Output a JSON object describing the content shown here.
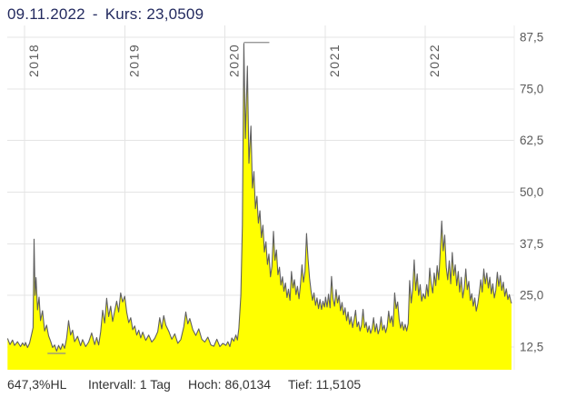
{
  "header": {
    "date": "09.11.2022",
    "dash": "-",
    "kurs_label": "Kurs:",
    "kurs_value": "23,0509"
  },
  "footer": {
    "change_hl": "647,3%HL",
    "interval": "Intervall: 1 Tag",
    "high": "Hoch: 86,0134",
    "low": "Tief: 11,5105"
  },
  "colors": {
    "background": "#ffffff",
    "area_fill": "#ffff00",
    "line": "#5f5f5f",
    "grid": "#e4e4e4",
    "axis_edge": "#ececec",
    "marker": "#8c8c8c",
    "title_text": "#232a5f",
    "axis_text": "#5a5a5a",
    "footer_text": "#333333"
  },
  "chart_data": {
    "type": "area",
    "title": "09.11.2022 - Kurs: 23,0509",
    "xlabel": "",
    "ylabel": "",
    "grid": true,
    "legend": false,
    "x_range": [
      2017.83,
      2022.87
    ],
    "ylim": [
      7,
      90.5
    ],
    "x_years": [
      2018,
      2019,
      2020,
      2021,
      2022
    ],
    "y_ticks": [
      {
        "v": 87.5,
        "label": "87,5"
      },
      {
        "v": 75.0,
        "label": "75,0"
      },
      {
        "v": 62.5,
        "label": "62,5"
      },
      {
        "v": 50.0,
        "label": "50,0"
      },
      {
        "v": 37.5,
        "label": "37,5"
      },
      {
        "v": 25.0,
        "label": "25,0"
      },
      {
        "v": 12.5,
        "label": "12,5"
      }
    ],
    "last_value": 23.0509,
    "high_marker": {
      "x": 2020.19,
      "value": 86.0134
    },
    "low_marker": {
      "x": 2018.32,
      "value": 11.5105
    },
    "series": [
      {
        "name": "Kurs",
        "points": [
          [
            2017.83,
            14.6
          ],
          [
            2017.855,
            13.1
          ],
          [
            2017.88,
            14.2
          ],
          [
            2017.9,
            12.9
          ],
          [
            2017.93,
            13.8
          ],
          [
            2017.96,
            12.6
          ],
          [
            2017.98,
            13.5
          ],
          [
            2018.0,
            12.8
          ],
          [
            2018.01,
            13.6
          ],
          [
            2018.03,
            12.4
          ],
          [
            2018.05,
            13.4
          ],
          [
            2018.07,
            15.5
          ],
          [
            2018.085,
            17.2
          ],
          [
            2018.095,
            38.6
          ],
          [
            2018.105,
            25.0
          ],
          [
            2018.115,
            29.3
          ],
          [
            2018.13,
            21.5
          ],
          [
            2018.145,
            24.6
          ],
          [
            2018.16,
            18.9
          ],
          [
            2018.18,
            21.3
          ],
          [
            2018.2,
            16.4
          ],
          [
            2018.22,
            17.8
          ],
          [
            2018.24,
            15.2
          ],
          [
            2018.26,
            13.9
          ],
          [
            2018.28,
            12.4
          ],
          [
            2018.3,
            13.0
          ],
          [
            2018.32,
            11.51
          ],
          [
            2018.34,
            12.9
          ],
          [
            2018.36,
            11.9
          ],
          [
            2018.38,
            13.3
          ],
          [
            2018.4,
            12.2
          ],
          [
            2018.42,
            14.6
          ],
          [
            2018.44,
            18.9
          ],
          [
            2018.46,
            15.4
          ],
          [
            2018.48,
            16.6
          ],
          [
            2018.5,
            13.8
          ],
          [
            2018.53,
            15.1
          ],
          [
            2018.56,
            12.8
          ],
          [
            2018.58,
            14.3
          ],
          [
            2018.61,
            12.6
          ],
          [
            2018.64,
            13.7
          ],
          [
            2018.67,
            15.9
          ],
          [
            2018.7,
            13.1
          ],
          [
            2018.72,
            14.8
          ],
          [
            2018.74,
            13.0
          ],
          [
            2018.76,
            16.2
          ],
          [
            2018.78,
            21.4
          ],
          [
            2018.8,
            18.3
          ],
          [
            2018.82,
            24.3
          ],
          [
            2018.84,
            19.9
          ],
          [
            2018.86,
            22.4
          ],
          [
            2018.88,
            18.7
          ],
          [
            2018.9,
            21.2
          ],
          [
            2018.92,
            23.6
          ],
          [
            2018.94,
            21.0
          ],
          [
            2018.96,
            25.6
          ],
          [
            2018.98,
            23.4
          ],
          [
            2019.0,
            24.8
          ],
          [
            2019.02,
            20.9
          ],
          [
            2019.04,
            18.4
          ],
          [
            2019.06,
            19.6
          ],
          [
            2019.08,
            16.7
          ],
          [
            2019.1,
            17.6
          ],
          [
            2019.12,
            15.4
          ],
          [
            2019.14,
            16.6
          ],
          [
            2019.16,
            14.7
          ],
          [
            2019.18,
            16.1
          ],
          [
            2019.21,
            14.1
          ],
          [
            2019.24,
            15.4
          ],
          [
            2019.27,
            13.7
          ],
          [
            2019.3,
            14.6
          ],
          [
            2019.33,
            16.2
          ],
          [
            2019.35,
            19.6
          ],
          [
            2019.37,
            16.9
          ],
          [
            2019.39,
            20.1
          ],
          [
            2019.41,
            17.8
          ],
          [
            2019.44,
            16.3
          ],
          [
            2019.47,
            14.4
          ],
          [
            2019.5,
            15.7
          ],
          [
            2019.53,
            13.4
          ],
          [
            2019.56,
            14.3
          ],
          [
            2019.59,
            17.4
          ],
          [
            2019.61,
            21.0
          ],
          [
            2019.63,
            18.1
          ],
          [
            2019.65,
            19.4
          ],
          [
            2019.68,
            16.7
          ],
          [
            2019.71,
            15.3
          ],
          [
            2019.74,
            16.9
          ],
          [
            2019.77,
            14.4
          ],
          [
            2019.8,
            13.7
          ],
          [
            2019.83,
            14.9
          ],
          [
            2019.86,
            13.0
          ],
          [
            2019.89,
            12.7
          ],
          [
            2019.92,
            14.4
          ],
          [
            2019.95,
            12.6
          ],
          [
            2019.98,
            13.4
          ],
          [
            2020.01,
            12.9
          ],
          [
            2020.03,
            13.8
          ],
          [
            2020.05,
            12.6
          ],
          [
            2020.07,
            14.7
          ],
          [
            2020.09,
            13.9
          ],
          [
            2020.11,
            15.4
          ],
          [
            2020.125,
            14.2
          ],
          [
            2020.14,
            17.0
          ],
          [
            2020.16,
            25.0
          ],
          [
            2020.175,
            42.0
          ],
          [
            2020.19,
            86.0
          ],
          [
            2020.205,
            63.0
          ],
          [
            2020.225,
            80.5
          ],
          [
            2020.24,
            57.0
          ],
          [
            2020.26,
            66.0
          ],
          [
            2020.275,
            51.0
          ],
          [
            2020.29,
            55.0
          ],
          [
            2020.305,
            46.0
          ],
          [
            2020.32,
            49.0
          ],
          [
            2020.335,
            42.5
          ],
          [
            2020.35,
            45.5
          ],
          [
            2020.365,
            39.0
          ],
          [
            2020.38,
            42.0
          ],
          [
            2020.395,
            35.5
          ],
          [
            2020.41,
            38.0
          ],
          [
            2020.425,
            32.5
          ],
          [
            2020.44,
            35.0
          ],
          [
            2020.455,
            29.5
          ],
          [
            2020.47,
            32.0
          ],
          [
            2020.485,
            40.5
          ],
          [
            2020.5,
            33.5
          ],
          [
            2020.515,
            36.0
          ],
          [
            2020.53,
            30.0
          ],
          [
            2020.545,
            31.8
          ],
          [
            2020.56,
            27.5
          ],
          [
            2020.575,
            29.5
          ],
          [
            2020.59,
            26.0
          ],
          [
            2020.605,
            28.0
          ],
          [
            2020.62,
            24.5
          ],
          [
            2020.635,
            26.5
          ],
          [
            2020.65,
            23.8
          ],
          [
            2020.665,
            30.8
          ],
          [
            2020.68,
            26.8
          ],
          [
            2020.695,
            28.8
          ],
          [
            2020.71,
            25.2
          ],
          [
            2020.725,
            27.2
          ],
          [
            2020.74,
            24.2
          ],
          [
            2020.755,
            27.6
          ],
          [
            2020.77,
            32.4
          ],
          [
            2020.785,
            28.2
          ],
          [
            2020.8,
            30.8
          ],
          [
            2020.815,
            40.0
          ],
          [
            2020.83,
            34.0
          ],
          [
            2020.845,
            29.2
          ],
          [
            2020.86,
            26.2
          ],
          [
            2020.875,
            23.8
          ],
          [
            2020.89,
            25.6
          ],
          [
            2020.905,
            22.6
          ],
          [
            2020.92,
            24.4
          ],
          [
            2020.935,
            21.8
          ],
          [
            2020.95,
            24.0
          ],
          [
            2020.965,
            21.6
          ],
          [
            2020.98,
            23.6
          ],
          [
            2020.995,
            22.2
          ],
          [
            2021.005,
            24.6
          ],
          [
            2021.02,
            22.2
          ],
          [
            2021.035,
            25.3
          ],
          [
            2021.05,
            22.0
          ],
          [
            2021.065,
            29.6
          ],
          [
            2021.08,
            24.2
          ],
          [
            2021.095,
            22.4
          ],
          [
            2021.11,
            26.4
          ],
          [
            2021.125,
            23.2
          ],
          [
            2021.14,
            25.0
          ],
          [
            2021.155,
            21.3
          ],
          [
            2021.17,
            23.3
          ],
          [
            2021.185,
            20.3
          ],
          [
            2021.2,
            22.0
          ],
          [
            2021.215,
            18.9
          ],
          [
            2021.23,
            21.0
          ],
          [
            2021.245,
            18.0
          ],
          [
            2021.26,
            19.8
          ],
          [
            2021.275,
            17.2
          ],
          [
            2021.29,
            19.0
          ],
          [
            2021.305,
            21.4
          ],
          [
            2021.32,
            17.4
          ],
          [
            2021.335,
            18.6
          ],
          [
            2021.35,
            16.4
          ],
          [
            2021.365,
            17.9
          ],
          [
            2021.38,
            21.6
          ],
          [
            2021.395,
            17.2
          ],
          [
            2021.41,
            18.5
          ],
          [
            2021.425,
            16.1
          ],
          [
            2021.44,
            17.6
          ],
          [
            2021.455,
            15.8
          ],
          [
            2021.47,
            17.0
          ],
          [
            2021.485,
            19.6
          ],
          [
            2021.5,
            16.2
          ],
          [
            2021.515,
            18.1
          ],
          [
            2021.53,
            15.7
          ],
          [
            2021.545,
            16.9
          ],
          [
            2021.56,
            19.8
          ],
          [
            2021.575,
            16.6
          ],
          [
            2021.59,
            17.8
          ],
          [
            2021.605,
            16.0
          ],
          [
            2021.62,
            17.4
          ],
          [
            2021.635,
            21.2
          ],
          [
            2021.65,
            18.4
          ],
          [
            2021.665,
            20.0
          ],
          [
            2021.68,
            17.5
          ],
          [
            2021.695,
            25.6
          ],
          [
            2021.71,
            21.8
          ],
          [
            2021.725,
            23.4
          ],
          [
            2021.74,
            19.3
          ],
          [
            2021.755,
            17.1
          ],
          [
            2021.77,
            18.6
          ],
          [
            2021.785,
            16.6
          ],
          [
            2021.8,
            18.0
          ],
          [
            2021.815,
            16.4
          ],
          [
            2021.83,
            18.2
          ],
          [
            2021.845,
            28.6
          ],
          [
            2021.86,
            23.2
          ],
          [
            2021.875,
            26.4
          ],
          [
            2021.89,
            33.6
          ],
          [
            2021.905,
            26.2
          ],
          [
            2021.92,
            30.2
          ],
          [
            2021.935,
            25.0
          ],
          [
            2021.95,
            27.6
          ],
          [
            2021.965,
            23.6
          ],
          [
            2021.98,
            25.4
          ],
          [
            2022.0,
            24.2
          ],
          [
            2022.015,
            27.6
          ],
          [
            2022.03,
            24.8
          ],
          [
            2022.045,
            31.6
          ],
          [
            2022.06,
            27.8
          ],
          [
            2022.075,
            25.6
          ],
          [
            2022.09,
            30.4
          ],
          [
            2022.105,
            27.4
          ],
          [
            2022.12,
            32.2
          ],
          [
            2022.135,
            28.8
          ],
          [
            2022.15,
            35.2
          ],
          [
            2022.165,
            43.0
          ],
          [
            2022.18,
            35.8
          ],
          [
            2022.195,
            39.6
          ],
          [
            2022.21,
            31.8
          ],
          [
            2022.225,
            28.8
          ],
          [
            2022.24,
            33.4
          ],
          [
            2022.255,
            27.8
          ],
          [
            2022.27,
            35.4
          ],
          [
            2022.285,
            29.8
          ],
          [
            2022.3,
            32.4
          ],
          [
            2022.315,
            27.4
          ],
          [
            2022.33,
            30.8
          ],
          [
            2022.345,
            25.8
          ],
          [
            2022.36,
            29.4
          ],
          [
            2022.375,
            24.4
          ],
          [
            2022.39,
            26.8
          ],
          [
            2022.405,
            31.4
          ],
          [
            2022.42,
            26.4
          ],
          [
            2022.435,
            28.4
          ],
          [
            2022.45,
            23.8
          ],
          [
            2022.465,
            25.4
          ],
          [
            2022.48,
            22.4
          ],
          [
            2022.495,
            24.4
          ],
          [
            2022.51,
            21.2
          ],
          [
            2022.525,
            23.0
          ],
          [
            2022.54,
            25.6
          ],
          [
            2022.555,
            28.8
          ],
          [
            2022.57,
            25.8
          ],
          [
            2022.585,
            31.4
          ],
          [
            2022.6,
            27.8
          ],
          [
            2022.615,
            30.4
          ],
          [
            2022.63,
            26.8
          ],
          [
            2022.645,
            29.4
          ],
          [
            2022.66,
            25.4
          ],
          [
            2022.675,
            27.8
          ],
          [
            2022.69,
            24.4
          ],
          [
            2022.705,
            26.2
          ],
          [
            2022.72,
            30.6
          ],
          [
            2022.735,
            27.2
          ],
          [
            2022.75,
            29.8
          ],
          [
            2022.765,
            26.2
          ],
          [
            2022.78,
            28.2
          ],
          [
            2022.795,
            24.8
          ],
          [
            2022.81,
            26.6
          ],
          [
            2022.825,
            24.0
          ],
          [
            2022.84,
            25.2
          ],
          [
            2022.855,
            23.6
          ],
          [
            2022.862,
            23.05
          ]
        ]
      }
    ]
  }
}
